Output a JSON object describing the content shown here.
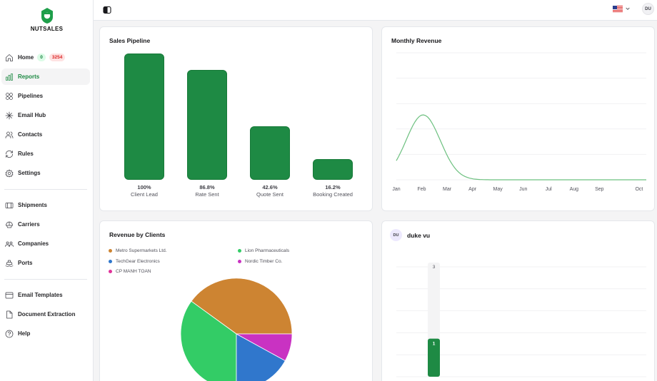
{
  "app": {
    "name": "NUTSALES",
    "user_initials": "DU"
  },
  "sidebar": {
    "items": [
      {
        "label": "Home",
        "icon": "home-icon",
        "badges": [
          "0",
          "3254"
        ]
      },
      {
        "label": "Reports",
        "icon": "bar-chart-icon",
        "active": true
      },
      {
        "label": "Pipelines",
        "icon": "pipelines-icon"
      },
      {
        "label": "Email Hub",
        "icon": "email-hub-icon"
      },
      {
        "label": "Contacts",
        "icon": "contacts-icon"
      },
      {
        "label": "Rules",
        "icon": "rules-icon"
      },
      {
        "label": "Settings",
        "icon": "gear-icon"
      },
      {
        "label": "Shipments",
        "icon": "shipments-icon"
      },
      {
        "label": "Carriers",
        "icon": "carriers-icon"
      },
      {
        "label": "Companies",
        "icon": "companies-icon"
      },
      {
        "label": "Ports",
        "icon": "ports-icon"
      },
      {
        "label": "Email Templates",
        "icon": "email-templates-icon"
      },
      {
        "label": "Document Extraction",
        "icon": "document-icon"
      },
      {
        "label": "Help",
        "icon": "help-icon"
      }
    ]
  },
  "topbar": {
    "language_flag": "us-flag-icon"
  },
  "colors": {
    "accent": "#1e8a44",
    "line": "#4ade80"
  },
  "sales_pipeline": {
    "title": "Sales Pipeline",
    "chart_data": {
      "type": "bar",
      "categories": [
        "Client Lead",
        "Rate Sent",
        "Quote Sent",
        "Booking Created"
      ],
      "values": [
        100,
        86.8,
        42.6,
        16.2
      ],
      "value_labels": [
        "100%",
        "86.8%",
        "42.6%",
        "16.2%"
      ],
      "ylim": [
        0,
        100
      ]
    }
  },
  "monthly_revenue": {
    "title": "Monthly Revenue",
    "chart_data": {
      "type": "line",
      "categories": [
        "Jan",
        "Feb",
        "Mar",
        "Apr",
        "May",
        "Jun",
        "Jul",
        "Aug",
        "Sep",
        "Oct"
      ],
      "grid": true
    }
  },
  "revenue_by_clients": {
    "title": "Revenue by Clients",
    "chart_data": {
      "type": "pie",
      "labels": [
        "Metro Supermarkets Ltd.",
        "Lion Pharmaceuticals",
        "TechGear Electronics",
        "Nordic Timber Co.",
        "CP MANH TOAN"
      ],
      "values": [
        40,
        35,
        17,
        8,
        0
      ],
      "colors": [
        "#cd8432",
        "#33cc66",
        "#3077cc",
        "#c932c2",
        "#e0339a"
      ],
      "legend": "top"
    }
  },
  "user_panel": {
    "initials": "DU",
    "name": "duke vu",
    "chart_data": {
      "type": "bar",
      "values": [
        1
      ],
      "value_labels": [
        "1"
      ],
      "max_label": "3",
      "ylim": [
        0,
        3
      ]
    }
  }
}
